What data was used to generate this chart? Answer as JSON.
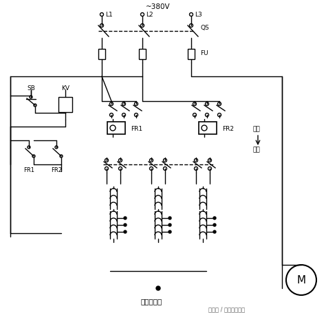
{
  "background_color": "#ffffff",
  "line_color": "#000000",
  "labels": {
    "voltage": "~380V",
    "L1": "L1",
    "L2": "L2",
    "L3": "L3",
    "QS": "QS",
    "FU": "FU",
    "SB": "SB",
    "KV": "KV",
    "FR1": "FR1",
    "FR2": "FR2",
    "run": "运行",
    "start": "启动",
    "transformer": "自耦变压器",
    "watermark": "头条号 / 全球电气资源",
    "motor": "M"
  },
  "figsize": [
    4.74,
    4.56
  ],
  "dpi": 100
}
